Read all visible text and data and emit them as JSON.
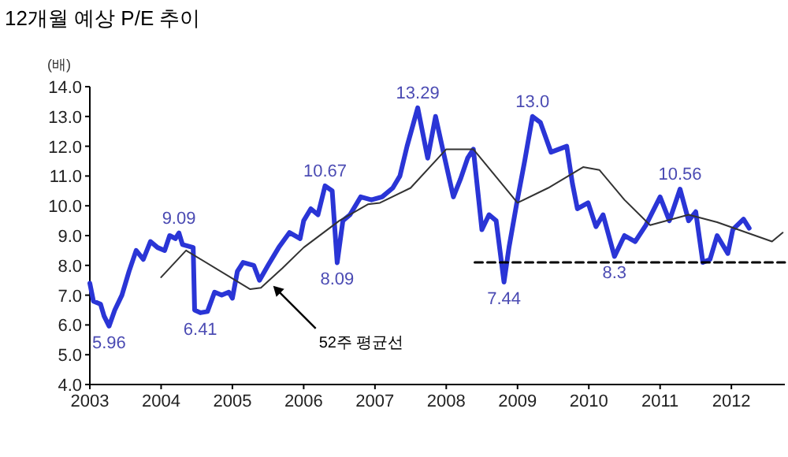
{
  "chart_data": {
    "type": "line",
    "title": "12개월 예상 P/E 추이",
    "ylabel": "(배)",
    "xlim": [
      2003,
      2012.75
    ],
    "xticks": [
      2003,
      2004,
      2005,
      2006,
      2007,
      2008,
      2009,
      2010,
      2011,
      2012
    ],
    "ylim": [
      4,
      14
    ],
    "yticks": [
      {
        "value": 4,
        "label": "4.0"
      },
      {
        "value": 5,
        "label": "5.0"
      },
      {
        "value": 6,
        "label": "6.0"
      },
      {
        "value": 7,
        "label": "7.0"
      },
      {
        "value": 8,
        "label": "8.0"
      },
      {
        "value": 9,
        "label": "9.0"
      },
      {
        "value": 10,
        "label": "10.0"
      },
      {
        "value": 11,
        "label": "11.0"
      },
      {
        "value": 12,
        "label": "12.0"
      },
      {
        "value": 13,
        "label": "13.0"
      },
      {
        "value": 14,
        "label": "14.0"
      }
    ],
    "series": [
      {
        "color": "#2a35d6",
        "x": [
          2003.0,
          2003.05,
          2003.15,
          2003.2,
          2003.27,
          2003.35,
          2003.45,
          2003.55,
          2003.65,
          2003.75,
          2003.85,
          2003.95,
          2004.05,
          2004.12,
          2004.2,
          2004.25,
          2004.3,
          2004.45,
          2004.47,
          2004.55,
          2004.65,
          2004.75,
          2004.85,
          2004.95,
          2005.0,
          2005.07,
          2005.15,
          2005.3,
          2005.38,
          2005.5,
          2005.65,
          2005.8,
          2005.95,
          2006.0,
          2006.1,
          2006.2,
          2006.3,
          2006.4,
          2006.47,
          2006.55,
          2006.65,
          2006.8,
          2006.95,
          2007.1,
          2007.25,
          2007.35,
          2007.45,
          2007.6,
          2007.74,
          2007.85,
          2007.96,
          2008.1,
          2008.2,
          2008.3,
          2008.38,
          2008.5,
          2008.6,
          2008.7,
          2008.81,
          2008.88,
          2008.99,
          2009.1,
          2009.21,
          2009.32,
          2009.47,
          2009.69,
          2009.77,
          2009.84,
          2009.99,
          2010.1,
          2010.2,
          2010.36,
          2010.5,
          2010.65,
          2010.8,
          2011.0,
          2011.13,
          2011.28,
          2011.4,
          2011.5,
          2011.6,
          2011.7,
          2011.8,
          2011.95,
          2012.02,
          2012.17,
          2012.25
        ],
        "values": [
          7.4,
          6.8,
          6.7,
          6.3,
          5.96,
          6.5,
          7.0,
          7.8,
          8.5,
          8.2,
          8.8,
          8.6,
          8.5,
          9.0,
          8.9,
          9.09,
          8.7,
          8.6,
          6.5,
          6.41,
          6.45,
          7.1,
          7.0,
          7.1,
          6.9,
          7.8,
          8.1,
          8.0,
          7.5,
          8.0,
          8.6,
          9.1,
          8.9,
          9.5,
          9.9,
          9.7,
          10.67,
          10.5,
          8.09,
          9.5,
          9.7,
          10.3,
          10.2,
          10.3,
          10.6,
          11.0,
          12.0,
          13.29,
          11.6,
          13.0,
          11.8,
          10.3,
          10.9,
          11.6,
          11.9,
          9.2,
          9.7,
          9.5,
          7.44,
          8.6,
          10.1,
          11.5,
          13.0,
          12.8,
          11.8,
          12.0,
          10.75,
          9.9,
          10.1,
          9.3,
          9.7,
          8.3,
          9.0,
          8.8,
          9.35,
          10.3,
          9.5,
          10.56,
          9.5,
          9.8,
          8.1,
          8.2,
          9.0,
          8.4,
          9.2,
          9.55,
          9.25
        ]
      },
      {
        "name": "52주 평균선",
        "color": "#333333",
        "x": [
          2004.0,
          2004.35,
          2005.25,
          2005.4,
          2005.7,
          2006.0,
          2006.5,
          2006.9,
          2007.07,
          2007.5,
          2008.0,
          2008.38,
          2009.0,
          2009.43,
          2009.92,
          2010.15,
          2010.5,
          2010.86,
          2011.4,
          2011.8,
          2012.57,
          2012.72
        ],
        "values": [
          7.6,
          8.5,
          7.2,
          7.25,
          7.9,
          8.6,
          9.5,
          10.05,
          10.1,
          10.6,
          11.9,
          11.9,
          10.1,
          10.6,
          11.3,
          11.2,
          10.2,
          9.35,
          9.7,
          9.45,
          8.8,
          9.1
        ]
      },
      {
        "color": "#000000",
        "line_style": "dashed",
        "x": [
          2008.4,
          2012.75
        ],
        "values": [
          8.1,
          8.1
        ]
      }
    ],
    "annotations": [
      {
        "text": "5.96",
        "x": 2003.27,
        "y": 5.96
      },
      {
        "text": "9.09",
        "x": 2004.25,
        "y": 9.09
      },
      {
        "text": "6.41",
        "x": 2004.55,
        "y": 6.41
      },
      {
        "text": "10.67",
        "x": 2006.3,
        "y": 10.67
      },
      {
        "text": "8.09",
        "x": 2006.47,
        "y": 8.09
      },
      {
        "text": "13.29",
        "x": 2007.6,
        "y": 13.29
      },
      {
        "text": "7.44",
        "x": 2008.81,
        "y": 7.44
      },
      {
        "text": "13.0",
        "x": 2009.21,
        "y": 13.0
      },
      {
        "text": "8.3",
        "x": 2010.36,
        "y": 8.3
      },
      {
        "text": "10.56",
        "x": 2011.28,
        "y": 10.56
      }
    ]
  }
}
